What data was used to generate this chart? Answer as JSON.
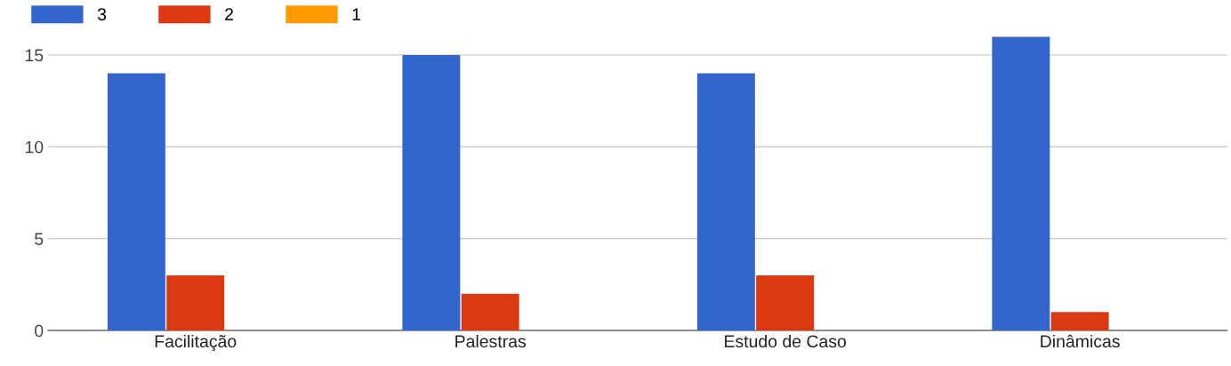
{
  "chart_data": {
    "type": "bar",
    "categories": [
      "Facilitação",
      "Palestras",
      "Estudo de Caso",
      "Dinâmicas"
    ],
    "series": [
      {
        "name": "3",
        "color": "#3366cc",
        "values": [
          14,
          15,
          14,
          16
        ]
      },
      {
        "name": "2",
        "color": "#dc3912",
        "values": [
          3,
          2,
          3,
          1
        ]
      },
      {
        "name": "1",
        "color": "#ff9900",
        "values": [
          0,
          0,
          0,
          0
        ]
      }
    ],
    "ylim": [
      0,
      16
    ],
    "yticks": [
      0,
      5,
      10,
      15
    ],
    "grid": "y",
    "legend": "top left"
  }
}
